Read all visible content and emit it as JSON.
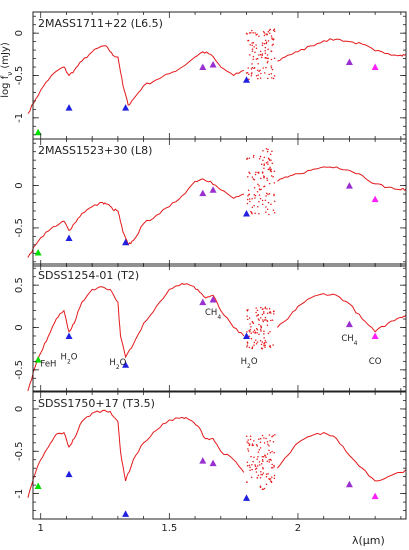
{
  "chart_data": [
    {
      "type": "line",
      "label": "2MASS1711+22 (L6.5)",
      "ylim": [
        -1.25,
        0.25
      ],
      "yticks": [
        -1,
        -0.5,
        0
      ],
      "spectrum": [
        [
          0.95,
          -0.95
        ],
        [
          0.98,
          -0.78
        ],
        [
          1.02,
          -0.58
        ],
        [
          1.06,
          -0.45
        ],
        [
          1.09,
          -0.4
        ],
        [
          1.11,
          -0.5
        ],
        [
          1.13,
          -0.44
        ],
        [
          1.16,
          -0.33
        ],
        [
          1.2,
          -0.22
        ],
        [
          1.24,
          -0.15
        ],
        [
          1.26,
          -0.17
        ],
        [
          1.28,
          -0.26
        ],
        [
          1.3,
          -0.28
        ],
        [
          1.32,
          -0.62
        ],
        [
          1.34,
          -0.85
        ],
        [
          1.36,
          -0.78
        ],
        [
          1.4,
          -0.62
        ],
        [
          1.45,
          -0.55
        ],
        [
          1.5,
          -0.48
        ],
        [
          1.55,
          -0.4
        ],
        [
          1.6,
          -0.28
        ],
        [
          1.63,
          -0.22
        ],
        [
          1.66,
          -0.25
        ],
        [
          1.7,
          -0.4
        ],
        [
          1.75,
          -0.5
        ],
        [
          1.79,
          -0.44
        ]
      ],
      "spectrum2": [
        [
          1.92,
          -0.33
        ],
        [
          1.96,
          -0.26
        ],
        [
          2.0,
          -0.22
        ],
        [
          2.05,
          -0.15
        ],
        [
          2.1,
          -0.09
        ],
        [
          2.15,
          -0.07
        ],
        [
          2.2,
          -0.1
        ],
        [
          2.25,
          -0.13
        ],
        [
          2.3,
          -0.21
        ],
        [
          2.35,
          -0.24
        ],
        [
          2.4,
          -0.26
        ],
        [
          2.42,
          -0.25
        ]
      ],
      "noise_x": [
        1.8,
        1.91
      ],
      "noise_y": [
        -0.55,
        0.05
      ],
      "markers": [
        {
          "x": 0.99,
          "y": -1.17,
          "color": "#00e000"
        },
        {
          "x": 1.11,
          "y": -0.88,
          "color": "#2020e0"
        },
        {
          "x": 1.33,
          "y": -0.88,
          "color": "#2020e0"
        },
        {
          "x": 1.63,
          "y": -0.4,
          "color": "#9a2fd0"
        },
        {
          "x": 1.67,
          "y": -0.37,
          "color": "#9a2fd0"
        },
        {
          "x": 1.8,
          "y": -0.55,
          "color": "#2020e0"
        },
        {
          "x": 2.2,
          "y": -0.34,
          "color": "#9a2fd0"
        },
        {
          "x": 2.3,
          "y": -0.4,
          "color": "#ff20ff"
        }
      ],
      "annotations": []
    },
    {
      "type": "line",
      "label": "2MASS1523+30 (L8)",
      "ylim": [
        -0.95,
        0.55
      ],
      "yticks": [
        -0.5,
        0
      ],
      "spectrum": [
        [
          0.95,
          -0.85
        ],
        [
          0.98,
          -0.7
        ],
        [
          1.02,
          -0.55
        ],
        [
          1.06,
          -0.48
        ],
        [
          1.09,
          -0.42
        ],
        [
          1.11,
          -0.53
        ],
        [
          1.13,
          -0.45
        ],
        [
          1.16,
          -0.33
        ],
        [
          1.2,
          -0.25
        ],
        [
          1.24,
          -0.2
        ],
        [
          1.26,
          -0.22
        ],
        [
          1.28,
          -0.28
        ],
        [
          1.3,
          -0.3
        ],
        [
          1.32,
          -0.55
        ],
        [
          1.34,
          -0.7
        ],
        [
          1.36,
          -0.65
        ],
        [
          1.4,
          -0.45
        ],
        [
          1.45,
          -0.35
        ],
        [
          1.5,
          -0.25
        ],
        [
          1.55,
          -0.12
        ],
        [
          1.6,
          0.05
        ],
        [
          1.63,
          0.08
        ],
        [
          1.66,
          0.05
        ],
        [
          1.7,
          -0.05
        ],
        [
          1.75,
          -0.15
        ],
        [
          1.79,
          -0.1
        ]
      ],
      "spectrum2": [
        [
          1.92,
          0.05
        ],
        [
          1.96,
          0.1
        ],
        [
          2.0,
          0.14
        ],
        [
          2.05,
          0.18
        ],
        [
          2.1,
          0.22
        ],
        [
          2.15,
          0.22
        ],
        [
          2.2,
          0.18
        ],
        [
          2.25,
          0.12
        ],
        [
          2.3,
          0.02
        ],
        [
          2.35,
          -0.02
        ],
        [
          2.4,
          -0.05
        ],
        [
          2.42,
          -0.04
        ]
      ],
      "noise_x": [
        1.8,
        1.91
      ],
      "noise_y": [
        -0.35,
        0.45
      ],
      "markers": [
        {
          "x": 0.99,
          "y": -0.79,
          "color": "#00e000"
        },
        {
          "x": 1.11,
          "y": -0.62,
          "color": "#2020e0"
        },
        {
          "x": 1.33,
          "y": -0.67,
          "color": "#2020e0"
        },
        {
          "x": 1.63,
          "y": -0.09,
          "color": "#9a2fd0"
        },
        {
          "x": 1.67,
          "y": -0.05,
          "color": "#9a2fd0"
        },
        {
          "x": 1.8,
          "y": -0.33,
          "color": "#2020e0"
        },
        {
          "x": 2.2,
          "y": 0.0,
          "color": "#9a2fd0"
        },
        {
          "x": 2.3,
          "y": -0.16,
          "color": "#ff20ff"
        }
      ],
      "annotations": []
    },
    {
      "type": "line",
      "label": "SDSS1254-01 (T2)",
      "ylim": [
        -0.75,
        0.75
      ],
      "yticks": [
        -0.5,
        0,
        0.5
      ],
      "spectrum": [
        [
          0.95,
          -0.75
        ],
        [
          0.98,
          -0.45
        ],
        [
          1.0,
          -0.3
        ],
        [
          1.03,
          -0.1
        ],
        [
          1.06,
          0.1
        ],
        [
          1.09,
          0.2
        ],
        [
          1.11,
          -0.05
        ],
        [
          1.13,
          0.05
        ],
        [
          1.16,
          0.3
        ],
        [
          1.2,
          0.45
        ],
        [
          1.24,
          0.48
        ],
        [
          1.27,
          0.45
        ],
        [
          1.3,
          0.3
        ],
        [
          1.31,
          -0.1
        ],
        [
          1.33,
          -0.35
        ],
        [
          1.36,
          -0.2
        ],
        [
          1.4,
          0.05
        ],
        [
          1.45,
          0.25
        ],
        [
          1.5,
          0.45
        ],
        [
          1.55,
          0.52
        ],
        [
          1.58,
          0.5
        ],
        [
          1.61,
          0.45
        ],
        [
          1.64,
          0.35
        ],
        [
          1.67,
          0.38
        ],
        [
          1.7,
          0.2
        ],
        [
          1.75,
          0.0
        ],
        [
          1.79,
          -0.1
        ]
      ],
      "spectrum2": [
        [
          1.92,
          0.0
        ],
        [
          1.96,
          0.1
        ],
        [
          2.0,
          0.25
        ],
        [
          2.05,
          0.35
        ],
        [
          2.1,
          0.4
        ],
        [
          2.15,
          0.38
        ],
        [
          2.2,
          0.28
        ],
        [
          2.25,
          0.1
        ],
        [
          2.3,
          -0.05
        ],
        [
          2.35,
          0.05
        ],
        [
          2.4,
          0.12
        ],
        [
          2.42,
          0.15
        ]
      ],
      "noise_x": [
        1.8,
        1.91
      ],
      "noise_y": [
        -0.25,
        0.25
      ],
      "markers": [
        {
          "x": 0.99,
          "y": -0.38,
          "color": "#00e000"
        },
        {
          "x": 1.11,
          "y": -0.1,
          "color": "#2020e0"
        },
        {
          "x": 1.33,
          "y": -0.44,
          "color": "#2020e0"
        },
        {
          "x": 1.63,
          "y": 0.3,
          "color": "#9a2fd0"
        },
        {
          "x": 1.67,
          "y": 0.33,
          "color": "#9a2fd0"
        },
        {
          "x": 1.8,
          "y": -0.1,
          "color": "#2020e0"
        },
        {
          "x": 2.2,
          "y": 0.04,
          "color": "#9a2fd0"
        },
        {
          "x": 2.3,
          "y": -0.1,
          "color": "#ff20ff"
        }
      ],
      "annotations": [
        {
          "text": "FeH",
          "x": 1.03,
          "y": -0.46
        },
        {
          "text": "H",
          "sub": "2",
          "after": "O",
          "x": 1.11,
          "y": -0.38
        },
        {
          "text": "H",
          "sub": "2",
          "after": "O",
          "x": 1.3,
          "y": -0.44
        },
        {
          "text": "CH",
          "sub": "4",
          "after": "",
          "x": 1.67,
          "y": 0.15
        },
        {
          "text": "H",
          "sub": "2",
          "after": "O",
          "x": 1.81,
          "y": -0.43
        },
        {
          "text": "CH",
          "sub": "4",
          "after": "",
          "x": 2.2,
          "y": -0.16
        },
        {
          "text": "CO",
          "x": 2.3,
          "y": -0.43
        }
      ]
    },
    {
      "type": "line",
      "label": "SDSS1750+17 (T3.5)",
      "ylim": [
        -1.3,
        0.2
      ],
      "yticks": [
        -1,
        -0.5,
        0
      ],
      "spectrum": [
        [
          0.95,
          -1.05
        ],
        [
          0.98,
          -0.75
        ],
        [
          1.0,
          -0.6
        ],
        [
          1.03,
          -0.45
        ],
        [
          1.06,
          -0.3
        ],
        [
          1.09,
          -0.28
        ],
        [
          1.11,
          -0.45
        ],
        [
          1.13,
          -0.35
        ],
        [
          1.16,
          -0.15
        ],
        [
          1.2,
          -0.05
        ],
        [
          1.24,
          -0.02
        ],
        [
          1.27,
          -0.03
        ],
        [
          1.3,
          -0.15
        ],
        [
          1.31,
          -0.5
        ],
        [
          1.33,
          -0.85
        ],
        [
          1.36,
          -0.6
        ],
        [
          1.4,
          -0.4
        ],
        [
          1.45,
          -0.25
        ],
        [
          1.5,
          -0.13
        ],
        [
          1.55,
          -0.1
        ],
        [
          1.58,
          -0.13
        ],
        [
          1.61,
          -0.2
        ],
        [
          1.64,
          -0.35
        ],
        [
          1.67,
          -0.35
        ],
        [
          1.7,
          -0.5
        ],
        [
          1.75,
          -0.6
        ],
        [
          1.79,
          -0.75
        ]
      ],
      "spectrum2": [
        [
          1.92,
          -0.7
        ],
        [
          1.96,
          -0.55
        ],
        [
          2.0,
          -0.4
        ],
        [
          2.05,
          -0.32
        ],
        [
          2.1,
          -0.28
        ],
        [
          2.15,
          -0.35
        ],
        [
          2.2,
          -0.55
        ],
        [
          2.25,
          -0.7
        ],
        [
          2.3,
          -0.85
        ],
        [
          2.35,
          -0.8
        ],
        [
          2.4,
          -0.75
        ],
        [
          2.42,
          -0.72
        ]
      ],
      "noise_x": [
        1.8,
        1.91
      ],
      "noise_y": [
        -0.95,
        -0.3
      ],
      "markers": [
        {
          "x": 0.99,
          "y": -0.91,
          "color": "#00e000"
        },
        {
          "x": 1.11,
          "y": -0.77,
          "color": "#2020e0"
        },
        {
          "x": 1.33,
          "y": -1.24,
          "color": "#2020e0"
        },
        {
          "x": 1.63,
          "y": -0.61,
          "color": "#9a2fd0"
        },
        {
          "x": 1.67,
          "y": -0.64,
          "color": "#9a2fd0"
        },
        {
          "x": 1.8,
          "y": -1.05,
          "color": "#2020e0"
        },
        {
          "x": 2.2,
          "y": -0.89,
          "color": "#9a2fd0"
        },
        {
          "x": 2.3,
          "y": -1.03,
          "color": "#ff20ff"
        }
      ],
      "annotations": []
    }
  ],
  "axes": {
    "xlim": [
      0.97,
      2.42
    ],
    "xticks": [
      1,
      1.5,
      2
    ],
    "xtick_labels": [
      "1",
      "1.5",
      "2"
    ],
    "xlabel": "λ(μm)",
    "ylabel": "log fν (mJy)"
  }
}
